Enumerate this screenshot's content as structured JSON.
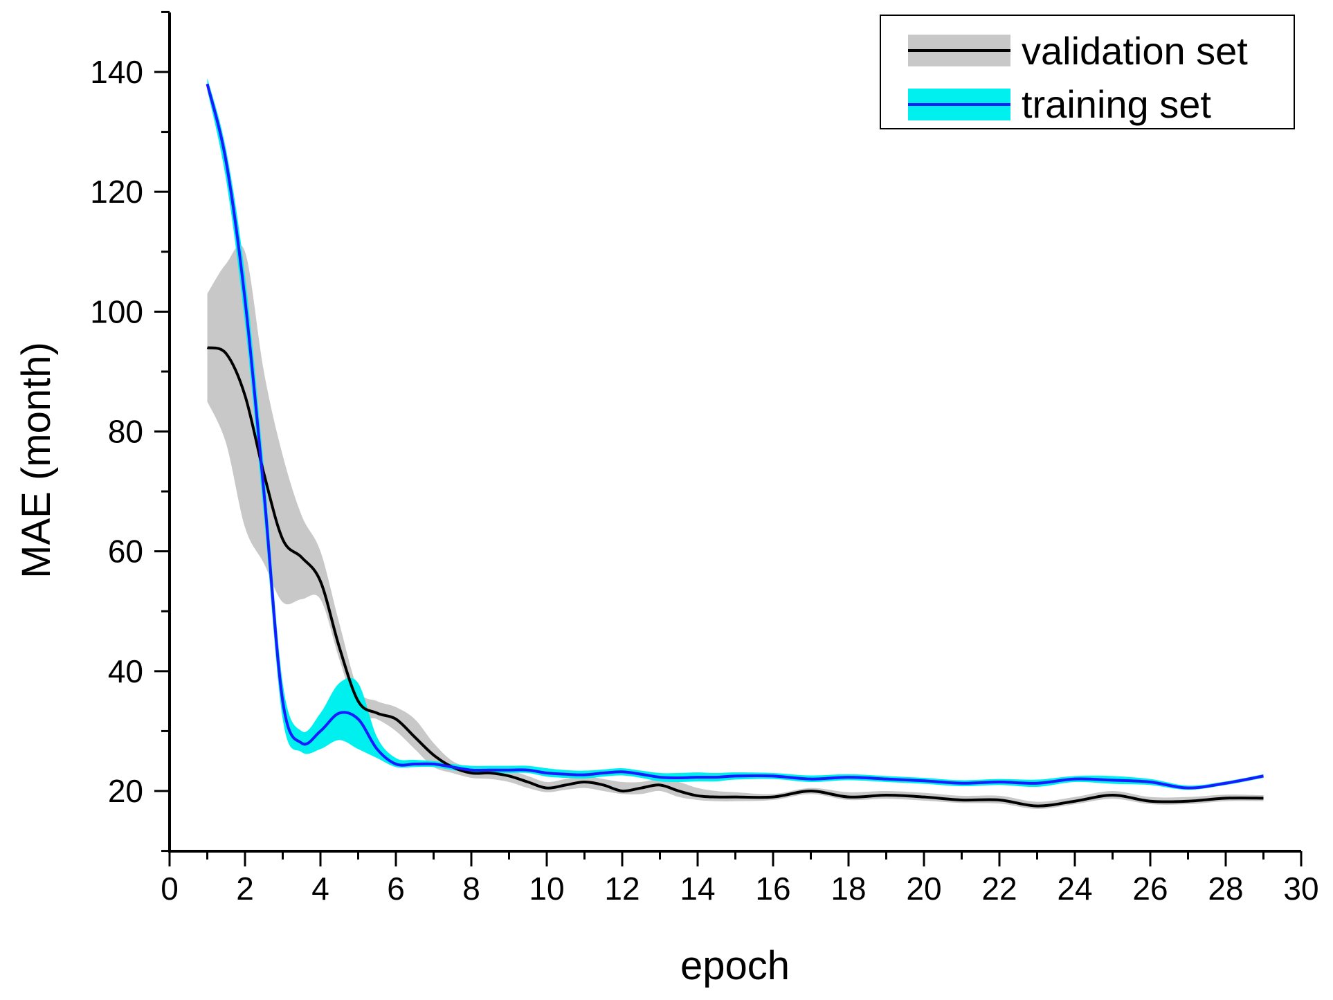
{
  "chart_data": {
    "type": "line",
    "title": "",
    "xlabel": "epoch",
    "ylabel": "MAE (month)",
    "xlim": [
      0,
      30
    ],
    "ylim": [
      10,
      150
    ],
    "x_ticks": [
      0,
      2,
      4,
      6,
      8,
      10,
      12,
      14,
      16,
      18,
      20,
      22,
      24,
      26,
      28,
      30
    ],
    "y_ticks": [
      20,
      40,
      60,
      80,
      100,
      120,
      140
    ],
    "grid": false,
    "legend_position": "top-right",
    "series": [
      {
        "name": "validation set",
        "line_color": "#000000",
        "band_color": "#c8c8c8",
        "x": [
          1,
          1.5,
          2,
          2.5,
          3,
          3.5,
          4,
          4.5,
          5,
          5.5,
          6,
          6.5,
          7,
          7.5,
          8,
          8.5,
          9,
          9.5,
          10,
          10.5,
          11,
          11.5,
          12,
          12.5,
          13,
          13.5,
          14,
          14.5,
          15,
          16,
          17,
          18,
          19,
          20,
          21,
          22,
          23,
          24,
          25,
          26,
          27,
          28,
          29
        ],
        "values": [
          94,
          93,
          86,
          73,
          62,
          59,
          55,
          44,
          35,
          33,
          32,
          29,
          26,
          24,
          23,
          23,
          22.5,
          21.5,
          20.5,
          21,
          21.5,
          21,
          20,
          20.5,
          21,
          20,
          19.2,
          19,
          19,
          19,
          20,
          19,
          19.3,
          19,
          18.5,
          18.5,
          17.5,
          18.3,
          19.3,
          18.3,
          18.3,
          18.8,
          18.8
        ],
        "band_upper": [
          103,
          108,
          110,
          90,
          76,
          66,
          60,
          48,
          37,
          35,
          34,
          32,
          28,
          25,
          24,
          24,
          23.5,
          22.5,
          21.5,
          22,
          22.5,
          22,
          21.5,
          21.5,
          22,
          21.5,
          20.5,
          20,
          19.8,
          19.5,
          20.5,
          19.8,
          20,
          19.7,
          19.2,
          19.2,
          18.2,
          19,
          20,
          19,
          19,
          19.4,
          19.3
        ],
        "band_lower": [
          85,
          78,
          64,
          58,
          51.5,
          52,
          52,
          42,
          33,
          32,
          30,
          27,
          24,
          23,
          22.2,
          22,
          21.5,
          20.5,
          19.8,
          20.2,
          20.5,
          20,
          19.5,
          19.5,
          20,
          19,
          18.5,
          18.3,
          18.3,
          18.5,
          19.5,
          18.5,
          18.7,
          18.4,
          18,
          17.9,
          17,
          17.8,
          18.7,
          17.8,
          17.8,
          18.3,
          18.3
        ]
      },
      {
        "name": "training set",
        "line_color": "#1a1aff",
        "band_color": "#00f0f0",
        "x": [
          1,
          1.5,
          2,
          2.5,
          3,
          3.5,
          4,
          4.5,
          5,
          5.5,
          6,
          6.5,
          7,
          7.5,
          8,
          8.5,
          9,
          9.5,
          10,
          10.5,
          11,
          11.5,
          12,
          12.5,
          13,
          13.5,
          14,
          14.5,
          15,
          16,
          17,
          18,
          19,
          20,
          21,
          22,
          23,
          24,
          25,
          26,
          27,
          28,
          29
        ],
        "values": [
          138,
          125,
          102,
          70,
          35,
          28,
          30,
          33,
          32,
          27,
          24.5,
          24.5,
          24.5,
          24,
          23.5,
          23.5,
          23.5,
          23.5,
          23,
          22.8,
          22.7,
          23,
          23.2,
          22.8,
          22.3,
          22.2,
          22.3,
          22.3,
          22.5,
          22.5,
          22,
          22.3,
          22,
          21.7,
          21.3,
          21.5,
          21.3,
          22,
          21.8,
          21.5,
          20.5,
          21.3,
          22.5
        ],
        "band_upper": [
          139,
          127,
          106,
          74,
          38,
          30,
          33,
          38,
          38,
          29,
          25.5,
          25.2,
          25,
          24.5,
          24.2,
          24.2,
          24.2,
          24.2,
          23.8,
          23.5,
          23.4,
          23.6,
          23.8,
          23.4,
          23,
          23,
          23.1,
          23,
          23.1,
          23,
          22.6,
          22.8,
          22.5,
          22.2,
          21.8,
          22,
          21.9,
          22.5,
          22.5,
          22,
          20.9,
          21.6,
          22.8
        ],
        "band_lower": [
          137,
          122,
          98,
          66,
          32,
          26.5,
          27,
          28.5,
          27,
          25.5,
          24,
          24,
          24,
          23.5,
          23,
          23,
          23,
          23,
          22.4,
          22.2,
          22.1,
          22.4,
          22.6,
          22.2,
          21.6,
          21.5,
          21.6,
          21.6,
          21.9,
          22,
          21.5,
          21.8,
          21.5,
          21.2,
          20.8,
          21,
          20.7,
          21.5,
          21.2,
          21,
          20.2,
          21,
          22.2
        ]
      }
    ]
  }
}
